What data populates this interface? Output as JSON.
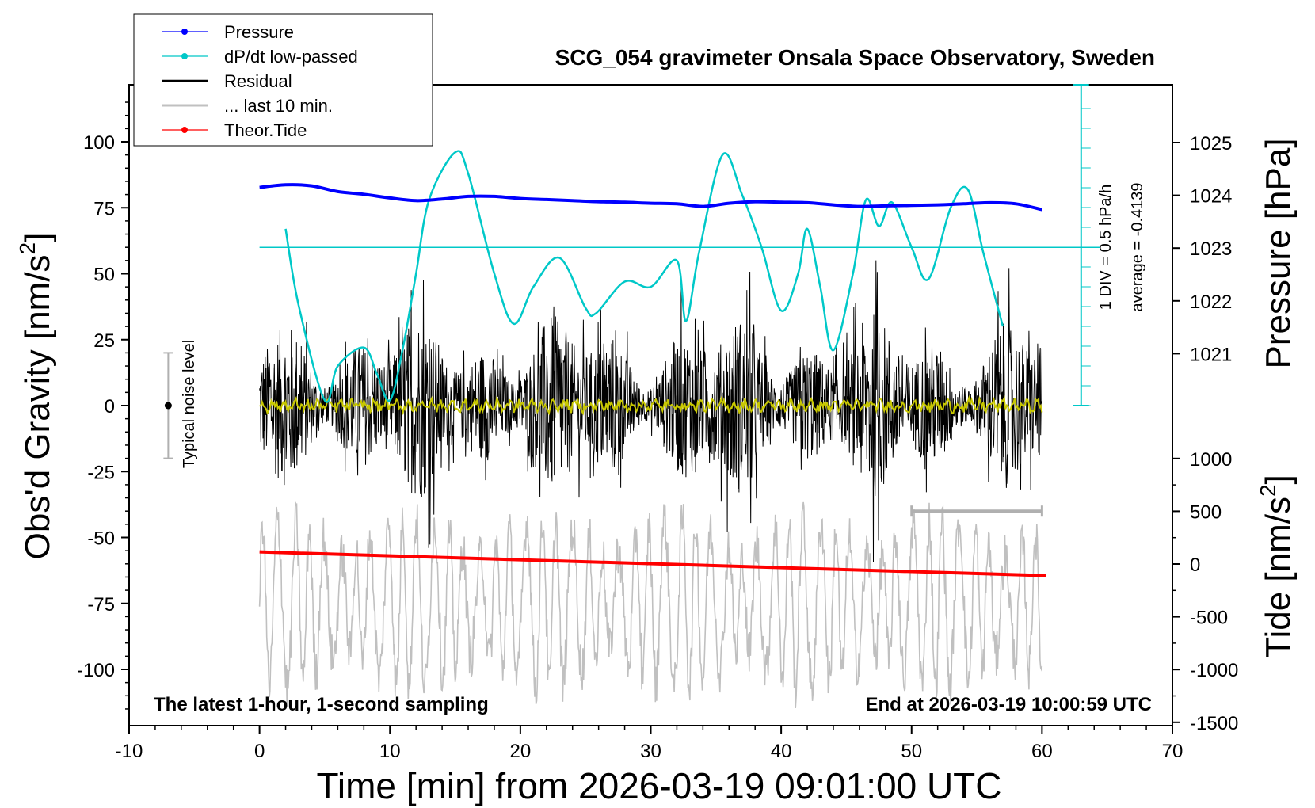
{
  "chart_data": {
    "type": "line",
    "title": "SCG_054 gravimeter Onsala Space Observatory, Sweden",
    "xlabel": "Time [min] from 2026-03-19 09:01:00 UTC",
    "ylabel_left": "Obs'd Gravity [nm/s",
    "ylabel_left_sup": "2",
    "ylabel_left_close": "]",
    "ylabel_right_top": "Pressure [hPa]",
    "ylabel_right_bottom": "Tide [nm/s",
    "ylabel_right_bottom_sup": "2",
    "ylabel_right_bottom_close": "]",
    "xlim": [
      -10,
      70
    ],
    "ylim": [
      -120,
      120
    ],
    "xticks": [
      "-10",
      "0",
      "10",
      "20",
      "30",
      "40",
      "50",
      "60",
      "70"
    ],
    "yticks_left": [
      "100",
      "75",
      "50",
      "25",
      "0",
      "-25",
      "-50",
      "-75",
      "-100"
    ],
    "pressure_ticks": [
      "1025",
      "1024",
      "1023",
      "1022",
      "1021"
    ],
    "tide_ticks": [
      "1000",
      "500",
      "0",
      "-500",
      "-1000",
      "-1500"
    ],
    "annotation_bottom_left": "The latest 1-hour, 1-second sampling",
    "annotation_bottom_right": "End at 2026-03-19 10:00:59 UTC",
    "noise_label": "Typical noise level",
    "dpdt_scale_label": "1 DIV = 0.5 hPa/h",
    "dpdt_average_label": "average = -0.4139",
    "legend": [
      {
        "label": "Pressure",
        "color": "#0000ff",
        "marker": true
      },
      {
        "label": "dP/dt low-passed",
        "color": "#00c8c8",
        "marker": true
      },
      {
        "label": "Residual",
        "color": "#000000",
        "marker": false
      },
      {
        "label": "... last 10 min.",
        "color": "#c0c0c0",
        "marker": false
      },
      {
        "label": "Theor.Tide",
        "color": "#ff0000",
        "marker": true
      }
    ],
    "series": [
      {
        "name": "Pressure",
        "axis": "pressure_hPa",
        "x": [
          0,
          2,
          4,
          6,
          8,
          10,
          12,
          14,
          16,
          18,
          20,
          22,
          24,
          26,
          28,
          30,
          32,
          34,
          36,
          38,
          40,
          42,
          44,
          46,
          48,
          50,
          52,
          54,
          56,
          58,
          60
        ],
        "values": [
          1024.15,
          1024.2,
          1024.18,
          1024.07,
          1024.02,
          1023.95,
          1023.9,
          1023.93,
          1023.98,
          1023.98,
          1023.94,
          1023.92,
          1023.9,
          1023.88,
          1023.87,
          1023.85,
          1023.84,
          1023.79,
          1023.85,
          1023.88,
          1023.87,
          1023.86,
          1023.82,
          1023.79,
          1023.8,
          1023.81,
          1023.82,
          1023.84,
          1023.86,
          1023.84,
          1023.73
        ]
      },
      {
        "name": "dP/dt low-passed",
        "axis": "gravity_scale",
        "x": [
          2,
          3,
          5,
          6,
          8,
          9,
          10,
          11,
          12,
          13,
          15,
          16,
          18,
          19.5,
          21,
          23,
          25,
          25.8,
          28,
          30,
          32,
          32.7,
          33.7,
          35.5,
          37,
          38.5,
          40,
          41.3,
          42,
          43,
          44,
          45.5,
          46.5,
          47.5,
          48.5,
          50,
          51.3,
          53,
          54.3,
          55.5,
          57
        ],
        "values": [
          67,
          38,
          2,
          15,
          22,
          12,
          2,
          22,
          50,
          78,
          96,
          88,
          50,
          31,
          45,
          56,
          37,
          35,
          47,
          45,
          55,
          32,
          58,
          95,
          80,
          60,
          36,
          50,
          67,
          45,
          21,
          50,
          78,
          68,
          77,
          60,
          48,
          75,
          82,
          58,
          30
        ]
      },
      {
        "name": "Residual",
        "axis": "gravity",
        "x_start": 0,
        "x_end": 60,
        "amplitude_approx": 30
      },
      {
        "name": "... last 10 min.",
        "axis": "gravity_offset",
        "x_start": 0,
        "x_end": 60
      },
      {
        "name": "Theor.Tide",
        "axis": "tide_nm_s2",
        "x": [
          0,
          60.3
        ],
        "values": [
          115,
          -110
        ]
      }
    ],
    "noise_bar": {
      "x": -7,
      "center": 0,
      "half_height": 20
    },
    "ten_min_bar": {
      "x_start": 50,
      "x_end": 60,
      "y": -40
    },
    "legend_position": "top-left",
    "grid": false
  }
}
